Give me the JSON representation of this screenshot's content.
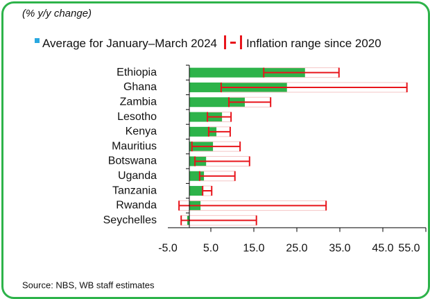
{
  "chart_data": {
    "type": "bar",
    "orientation": "horizontal",
    "subtitle": "(% y/y change)",
    "categories": [
      "Ethiopia",
      "Ghana",
      "Zambia",
      "Lesotho",
      "Kenya",
      "Mauritius",
      "Botswana",
      "Uganda",
      "Tanzania",
      "Rwanda",
      "Seychelles"
    ],
    "series": [
      {
        "name": "Average for January–March 2024",
        "color": "#2db34a",
        "legend_color": "#29a8e0",
        "values": [
          26.9,
          22.7,
          12.9,
          7.6,
          6.3,
          5.5,
          3.9,
          3.4,
          3.2,
          2.6,
          -0.5
        ]
      }
    ],
    "range": {
      "name": "Inflation range since 2020",
      "color": "#e8141b",
      "low": [
        17.3,
        7.4,
        9.2,
        4.2,
        4.5,
        0.6,
        1.3,
        2.4,
        3.1,
        -2.4,
        -1.9
      ],
      "high": [
        34.8,
        50.6,
        18.9,
        9.7,
        9.5,
        11.8,
        14.0,
        10.6,
        5.2,
        31.8,
        15.6
      ]
    },
    "xlim": [
      -5,
      55
    ],
    "xticks": [
      {
        "value": -5,
        "label": "-5.0"
      },
      {
        "value": 5,
        "label": "5.0"
      },
      {
        "value": 15,
        "label": "15.0"
      },
      {
        "value": 25,
        "label": "25.0"
      },
      {
        "value": 35,
        "label": "35.0"
      },
      {
        "value": 45,
        "label": "45.0"
      },
      {
        "value": 55,
        "label": "55.0"
      }
    ],
    "source": "Source: NBS, WB staff estimates"
  }
}
